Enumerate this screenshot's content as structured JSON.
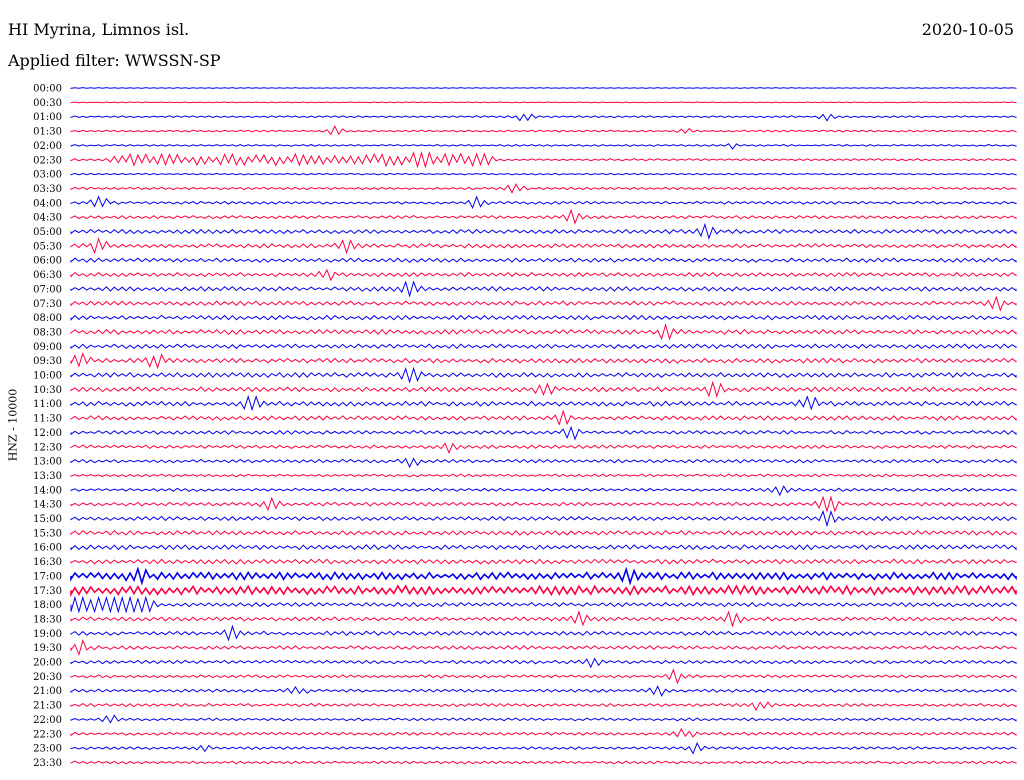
{
  "header": {
    "station": "HI Myrina, Limnos isl.",
    "date": "2020-10-05",
    "filter": "Applied filter: WWSSN-SP"
  },
  "chart_data": {
    "type": "line",
    "ylabel": "HNZ - 10000",
    "colors": [
      "#0000ee",
      "#ff0040"
    ],
    "rows": [
      {
        "time": "00:00",
        "activity": 0.0,
        "bursts": []
      },
      {
        "time": "00:30",
        "activity": 0.0,
        "bursts": []
      },
      {
        "time": "01:00",
        "activity": 0.15,
        "bursts": [
          [
            0.48,
            0.5
          ],
          [
            0.8,
            0.45
          ]
        ]
      },
      {
        "time": "01:30",
        "activity": 0.15,
        "bursts": [
          [
            0.28,
            0.5
          ],
          [
            0.65,
            0.3
          ]
        ]
      },
      {
        "time": "02:00",
        "activity": 0.15,
        "bursts": [
          [
            0.7,
            0.3
          ]
        ]
      },
      {
        "time": "02:30",
        "activity": 0.2,
        "bursts": [
          [
            0.05,
            0.55,
            0.39
          ],
          [
            0.37,
            0.9
          ]
        ]
      },
      {
        "time": "03:00",
        "activity": 0.1,
        "bursts": []
      },
      {
        "time": "03:30",
        "activity": 0.25,
        "bursts": [
          [
            0.47,
            0.5
          ]
        ]
      },
      {
        "time": "04:00",
        "activity": 0.3,
        "bursts": [
          [
            0.03,
            0.8
          ],
          [
            0.43,
            0.6
          ]
        ]
      },
      {
        "time": "04:30",
        "activity": 0.35,
        "bursts": [
          [
            0.53,
            0.8
          ]
        ]
      },
      {
        "time": "05:00",
        "activity": 0.5,
        "bursts": [
          [
            0.67,
            0.9
          ]
        ]
      },
      {
        "time": "05:30",
        "activity": 0.5,
        "bursts": [
          [
            0.03,
            0.9
          ],
          [
            0.29,
            0.8
          ]
        ]
      },
      {
        "time": "06:00",
        "activity": 0.5,
        "bursts": []
      },
      {
        "time": "06:30",
        "activity": 0.5,
        "bursts": [
          [
            0.27,
            0.7
          ]
        ]
      },
      {
        "time": "07:00",
        "activity": 0.55,
        "bursts": [
          [
            0.36,
            0.9
          ]
        ]
      },
      {
        "time": "07:30",
        "activity": 0.55,
        "bursts": [
          [
            0.98,
            0.7
          ]
        ]
      },
      {
        "time": "08:00",
        "activity": 0.55,
        "bursts": []
      },
      {
        "time": "08:30",
        "activity": 0.6,
        "bursts": [
          [
            0.63,
            0.8
          ]
        ]
      },
      {
        "time": "09:00",
        "activity": 0.55,
        "bursts": []
      },
      {
        "time": "09:30",
        "activity": 0.6,
        "bursts": [
          [
            0.01,
            1.0
          ],
          [
            0.09,
            0.9
          ]
        ]
      },
      {
        "time": "10:00",
        "activity": 0.6,
        "bursts": [
          [
            0.36,
            0.9
          ]
        ]
      },
      {
        "time": "10:30",
        "activity": 0.6,
        "bursts": [
          [
            0.5,
            0.9
          ],
          [
            0.68,
            0.9
          ]
        ]
      },
      {
        "time": "11:00",
        "activity": 0.6,
        "bursts": [
          [
            0.19,
            0.9
          ],
          [
            0.78,
            1.0
          ]
        ]
      },
      {
        "time": "11:30",
        "activity": 0.55,
        "bursts": [
          [
            0.52,
            0.9
          ]
        ]
      },
      {
        "time": "12:00",
        "activity": 0.45,
        "bursts": [
          [
            0.53,
            0.7
          ]
        ]
      },
      {
        "time": "12:30",
        "activity": 0.4,
        "bursts": [
          [
            0.4,
            0.6
          ]
        ]
      },
      {
        "time": "13:00",
        "activity": 0.4,
        "bursts": [
          [
            0.36,
            0.6
          ]
        ]
      },
      {
        "time": "13:30",
        "activity": 0.3,
        "bursts": []
      },
      {
        "time": "14:00",
        "activity": 0.35,
        "bursts": [
          [
            0.75,
            0.5
          ]
        ]
      },
      {
        "time": "14:30",
        "activity": 0.45,
        "bursts": [
          [
            0.21,
            0.8
          ],
          [
            0.8,
            2.2
          ]
        ]
      },
      {
        "time": "15:00",
        "activity": 0.5,
        "bursts": [
          [
            0.8,
            1.2
          ]
        ]
      },
      {
        "time": "15:30",
        "activity": 0.55,
        "bursts": []
      },
      {
        "time": "16:00",
        "activity": 0.6,
        "bursts": []
      },
      {
        "time": "16:30",
        "activity": 0.6,
        "bursts": []
      },
      {
        "time": "17:00",
        "activity": 0.95,
        "bursts": [
          [
            0.07,
            1.1
          ],
          [
            0.59,
            1.0
          ]
        ]
      },
      {
        "time": "17:30",
        "activity": 1.2,
        "bursts": []
      },
      {
        "time": "18:00",
        "activity": 0.5,
        "bursts": [
          [
            0.0,
            1.2,
            0.08
          ]
        ]
      },
      {
        "time": "18:30",
        "activity": 0.5,
        "bursts": [
          [
            0.54,
            0.8
          ],
          [
            0.7,
            0.8
          ]
        ]
      },
      {
        "time": "19:00",
        "activity": 0.5,
        "bursts": [
          [
            0.17,
            0.8
          ]
        ]
      },
      {
        "time": "19:30",
        "activity": 0.45,
        "bursts": [
          [
            0.01,
            0.8
          ]
        ]
      },
      {
        "time": "20:00",
        "activity": 0.4,
        "bursts": [
          [
            0.55,
            0.6
          ]
        ]
      },
      {
        "time": "20:30",
        "activity": 0.35,
        "bursts": [
          [
            0.64,
            0.7
          ]
        ]
      },
      {
        "time": "21:00",
        "activity": 0.35,
        "bursts": [
          [
            0.24,
            0.6
          ],
          [
            0.62,
            0.6
          ]
        ]
      },
      {
        "time": "21:30",
        "activity": 0.35,
        "bursts": [
          [
            0.73,
            0.6
          ]
        ]
      },
      {
        "time": "22:00",
        "activity": 0.3,
        "bursts": [
          [
            0.04,
            0.6
          ]
        ]
      },
      {
        "time": "22:30",
        "activity": 0.35,
        "bursts": [
          [
            0.65,
            0.6
          ]
        ]
      },
      {
        "time": "23:00",
        "activity": 0.3,
        "bursts": [
          [
            0.14,
            0.5
          ],
          [
            0.66,
            0.5
          ]
        ]
      },
      {
        "time": "23:30",
        "activity": 0.3,
        "bursts": []
      }
    ]
  }
}
